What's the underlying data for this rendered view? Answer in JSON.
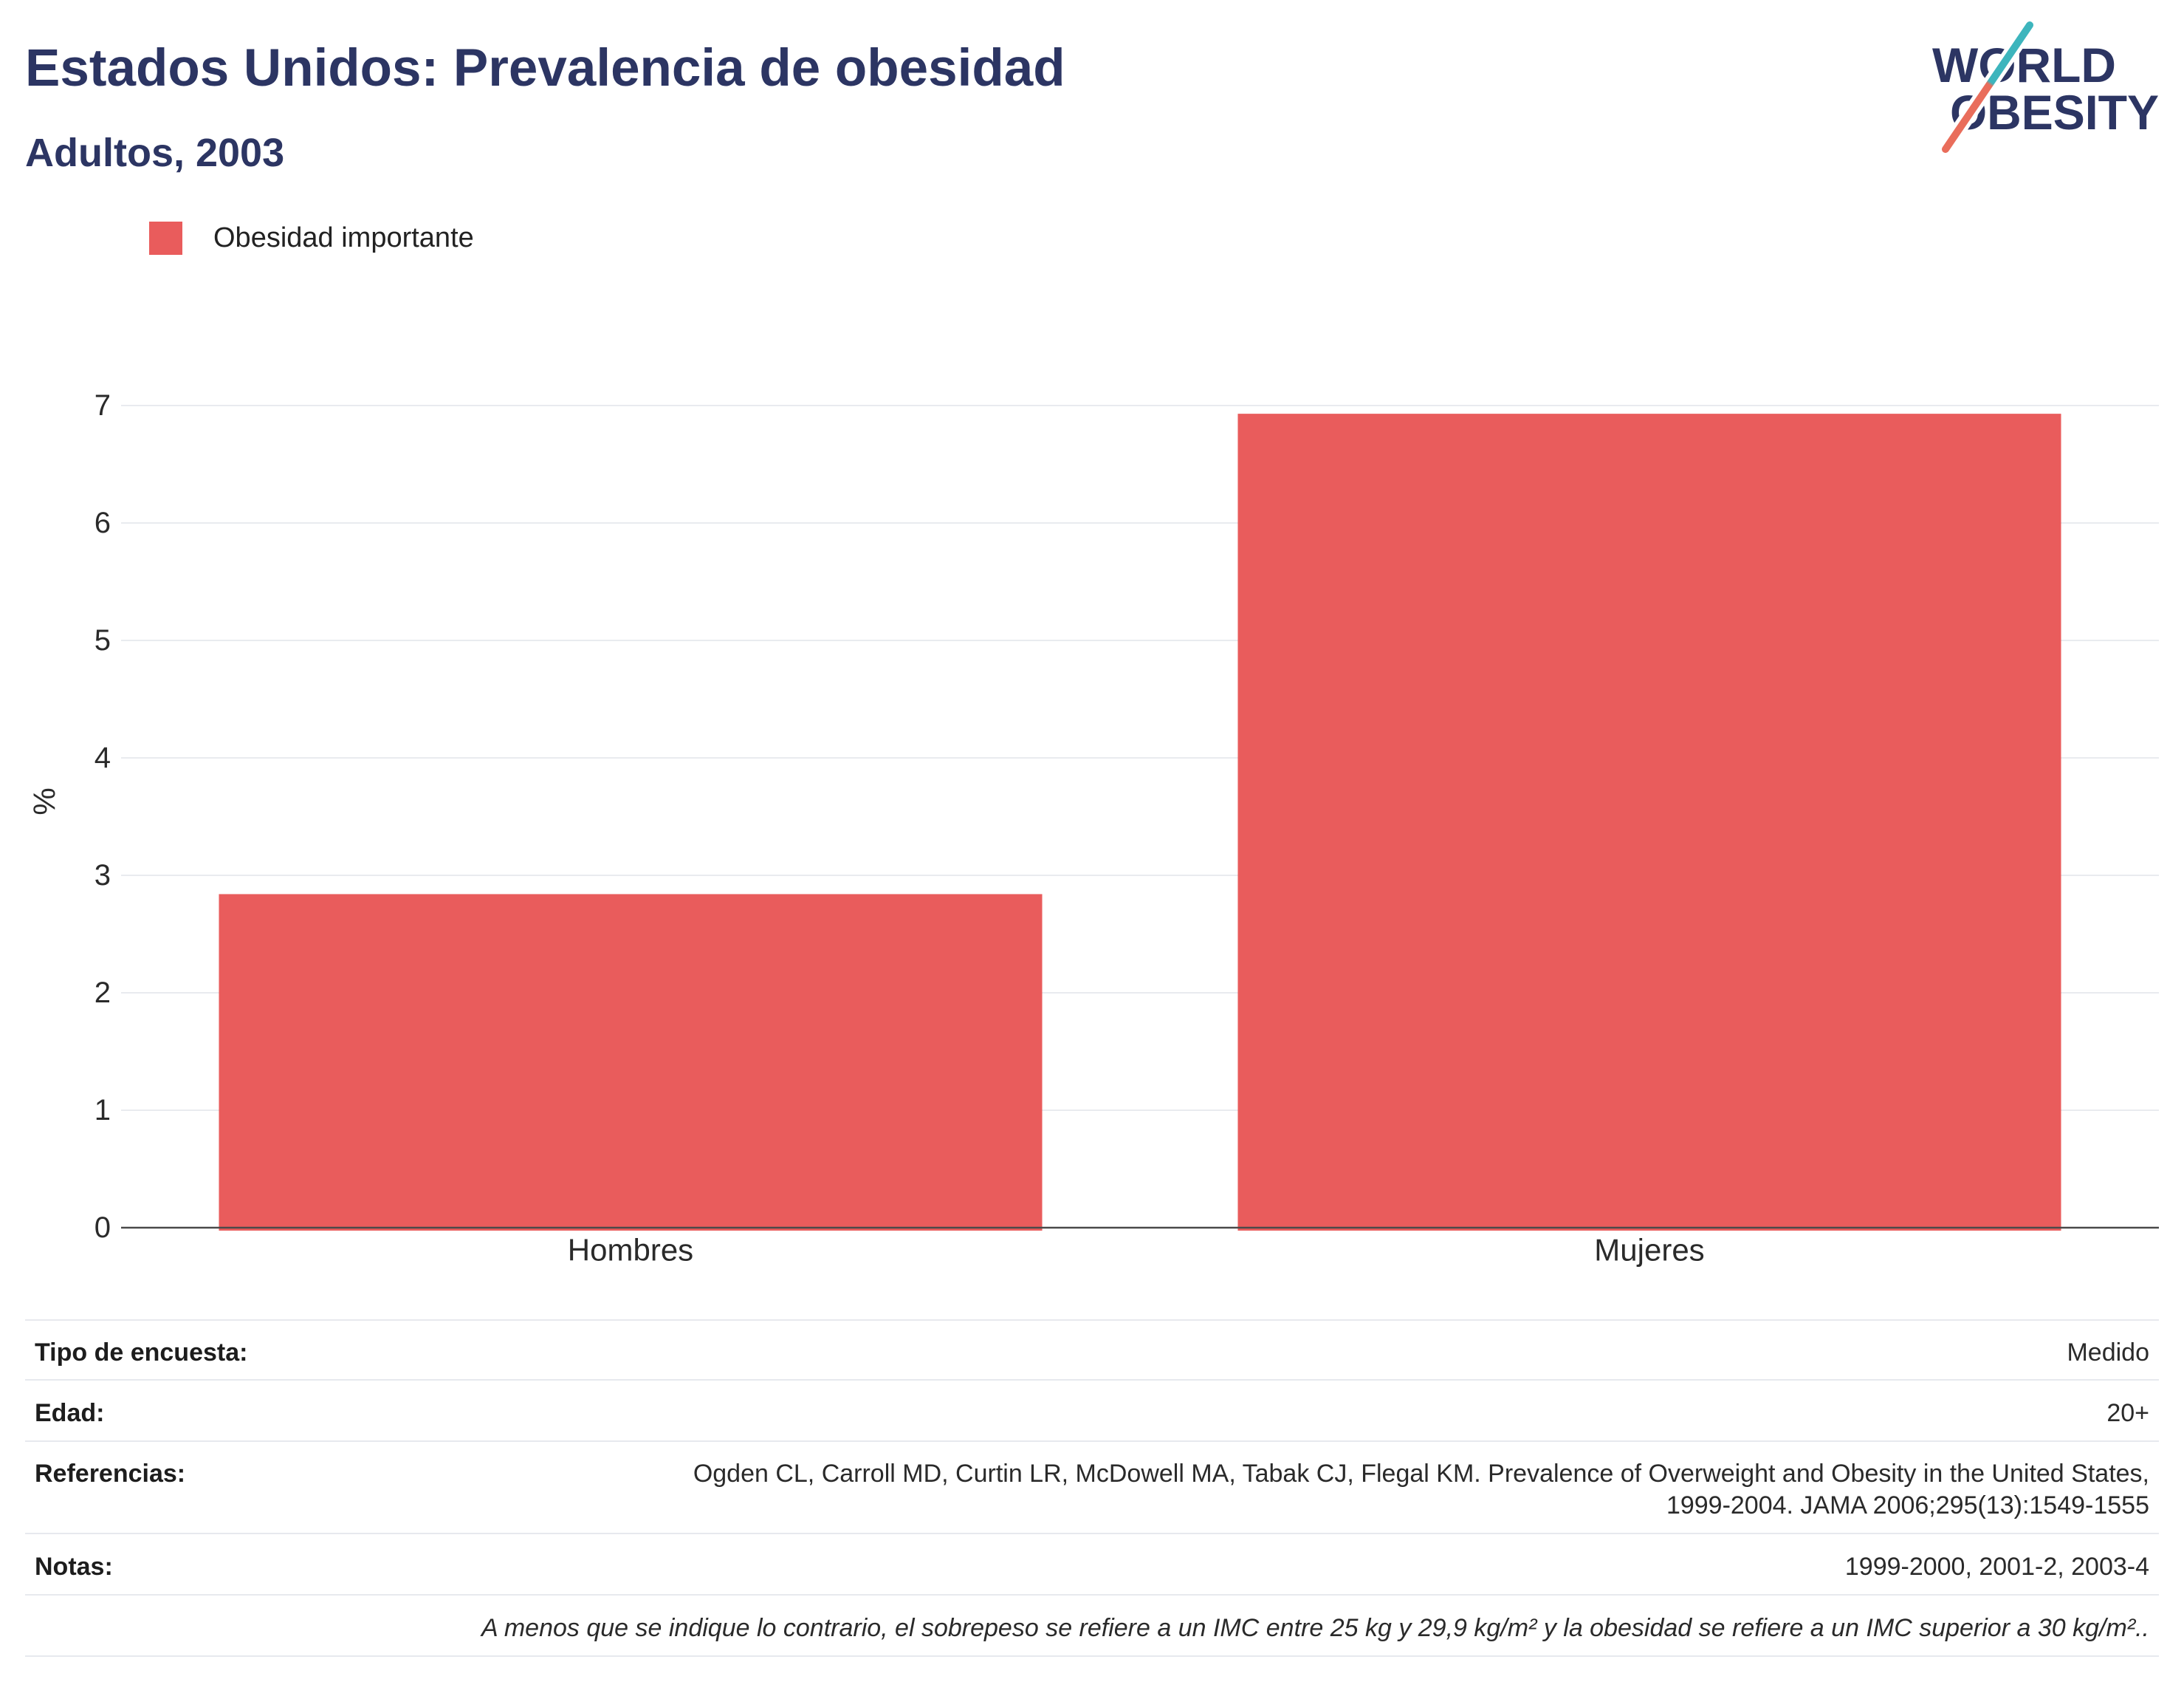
{
  "colors": {
    "title": "#2c3563",
    "logo_teal": "#3db5bd",
    "logo_coral": "#e96d5b",
    "axis": "#4a4a4a",
    "grid": "#e9ebef"
  },
  "logo": {
    "line1": "WORLD",
    "line2": "OBESITY"
  },
  "chart_data": {
    "type": "bar",
    "title": "Estados Unidos: Prevalencia de obesidad",
    "subtitle": "Adultos, 2003",
    "categories": [
      "Hombres",
      "Mujeres"
    ],
    "series": [
      {
        "name": "Obesidad importante",
        "values": [
          2.84,
          6.93
        ],
        "color": "#e95c5c"
      }
    ],
    "xlabel": "",
    "ylabel": "%",
    "ylim": [
      0,
      7
    ],
    "yticks": [
      0,
      1,
      2,
      3,
      4,
      5,
      6,
      7
    ],
    "grid": true,
    "legend": "top-left"
  },
  "info_table": {
    "rows": [
      {
        "label": "Tipo de encuesta:",
        "value": "Medido"
      },
      {
        "label": "Edad:",
        "value": "20+"
      },
      {
        "label": "Referencias:",
        "value": "Ogden CL, Carroll MD, Curtin LR, McDowell MA, Tabak CJ, Flegal KM. Prevalence of Overweight and Obesity in the United States, 1999-2004. JAMA 2006;295(13):1549-1555"
      },
      {
        "label": "Notas:",
        "value": "1999-2000, 2001-2, 2003-4"
      }
    ],
    "footnote": "A menos que se indique lo contrario, el sobrepeso se refiere a un IMC entre 25 kg y 29,9 kg/m² y la obesidad se refiere a un IMC superior a 30 kg/m².."
  }
}
